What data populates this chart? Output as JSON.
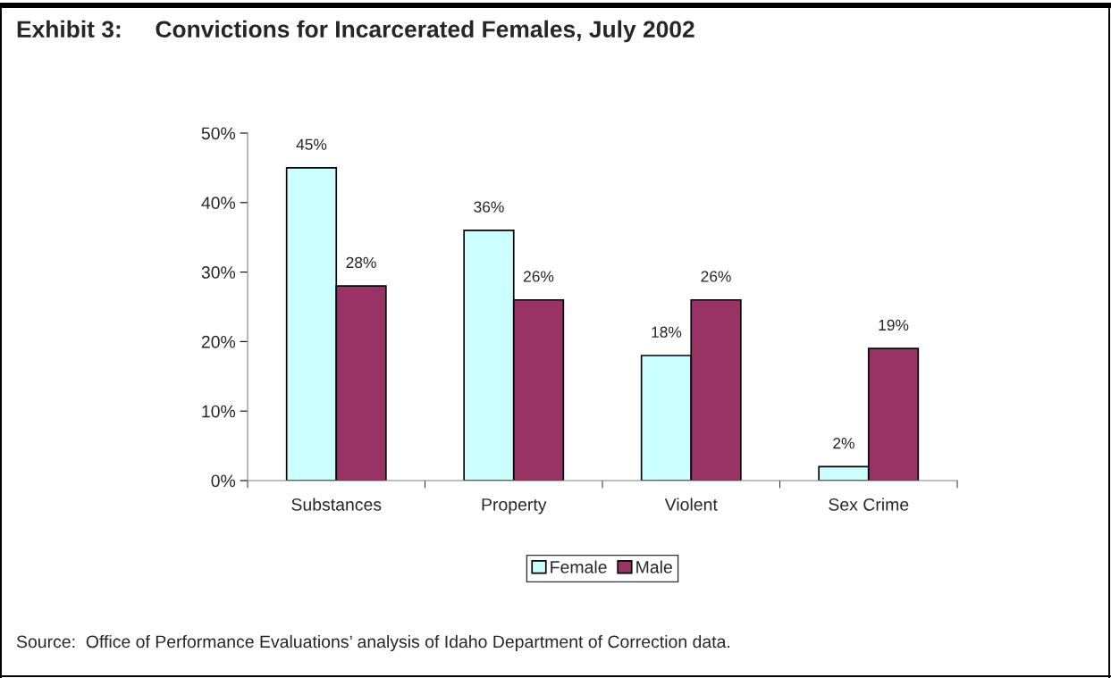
{
  "chart_data": {
    "type": "bar",
    "title": "Exhibit 3:     Convictions for Incarcerated Females, July 2002",
    "categories": [
      "Substances",
      "Property",
      "Violent",
      "Sex Crime"
    ],
    "series": [
      {
        "name": "Female",
        "color": "#ccffff",
        "values": [
          45,
          36,
          18,
          2
        ],
        "value_labels": [
          "45%",
          "36%",
          "18%",
          "2%"
        ]
      },
      {
        "name": "Male",
        "color": "#993366",
        "values": [
          28,
          26,
          26,
          19
        ],
        "value_labels": [
          "28%",
          "26%",
          "26%",
          "19%"
        ]
      }
    ],
    "ylim": [
      0,
      50
    ],
    "yticks": [
      {
        "value": 0,
        "label": "0%"
      },
      {
        "value": 10,
        "label": "10%"
      },
      {
        "value": 20,
        "label": "20%"
      },
      {
        "value": 30,
        "label": "30%"
      },
      {
        "value": 40,
        "label": "40%"
      },
      {
        "value": 50,
        "label": "50%"
      }
    ],
    "grid": false,
    "legend": "bottom",
    "annotations": [
      "Source:  Office of Performance Evaluations’ analysis of Idaho Department of Correction data."
    ]
  }
}
